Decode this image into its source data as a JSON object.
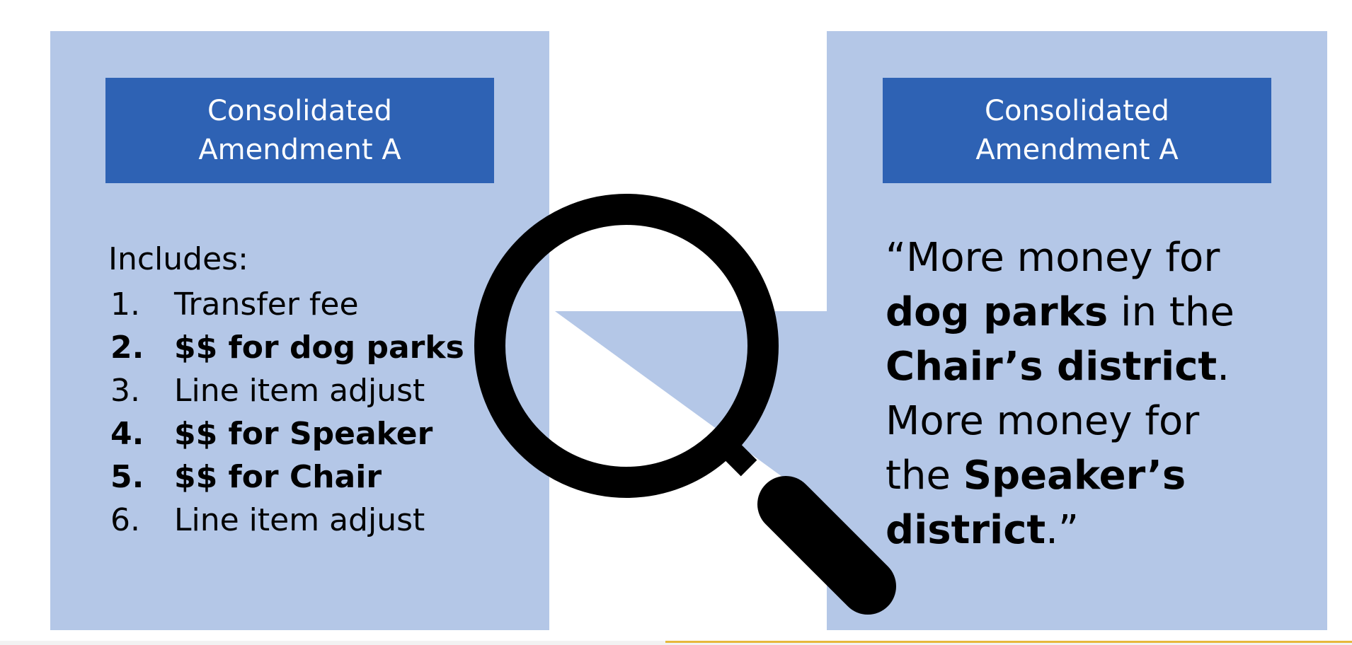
{
  "left_panel": {
    "title_line1": "Consolidated",
    "title_line2": "Amendment A",
    "includes_label": "Includes:",
    "items": [
      {
        "num": "1.",
        "text": "Transfer fee",
        "bold": false
      },
      {
        "num": "2.",
        "text": "$$ for dog parks",
        "bold": true
      },
      {
        "num": "3.",
        "text": "Line item adjust",
        "bold": false
      },
      {
        "num": "4.",
        "text": "$$ for Speaker",
        "bold": true
      },
      {
        "num": "5.",
        "text": "$$ for Chair",
        "bold": true
      },
      {
        "num": "6.",
        "text": "Line item adjust",
        "bold": false
      }
    ]
  },
  "right_panel": {
    "title_line1": "Consolidated",
    "title_line2": "Amendment A",
    "quote": {
      "l1": "“More money for",
      "l2_bold": "dog parks",
      "l2_rest": " in the",
      "l3_bold": "Chair’s district",
      "l3_rest": ".",
      "l4": "More money for",
      "l5_pre": "the ",
      "l5_bold": "Speaker’s",
      "l6_bold": "district",
      "l6_rest": ".”"
    }
  },
  "colors": {
    "panel_bg": "#b4c7e7",
    "header_bg": "#2e62b4",
    "header_text": "#ffffff",
    "magnifier": "#000000"
  },
  "icons": {
    "magnifier": "magnifying-glass-icon"
  }
}
